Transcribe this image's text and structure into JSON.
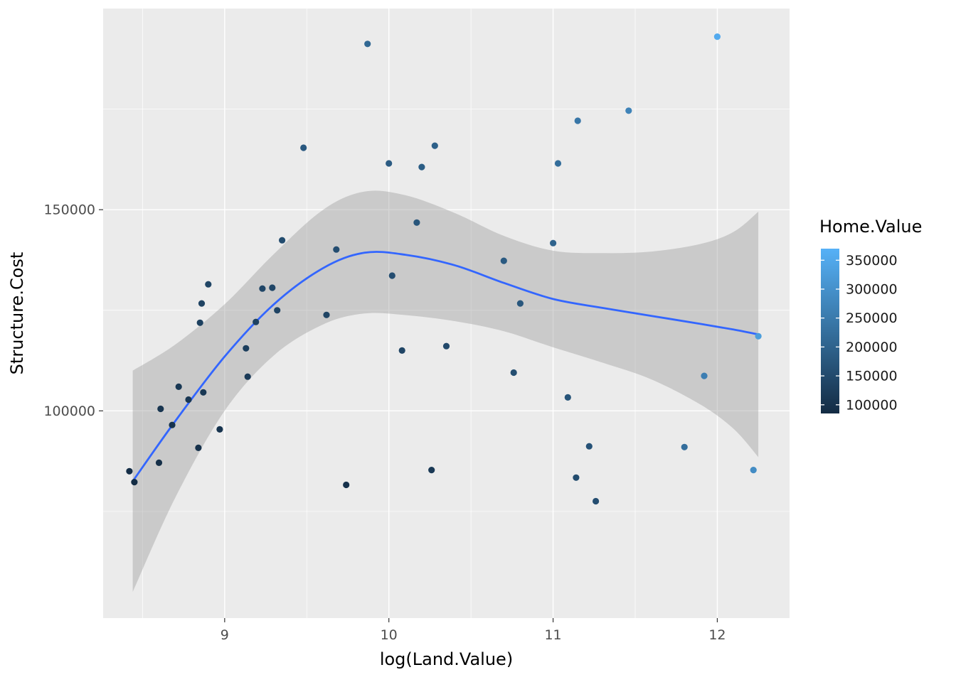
{
  "chart_data": {
    "type": "scatter",
    "xlabel": "log(Land.Value)",
    "ylabel": "Structure.Cost",
    "legend": {
      "title": "Home.Value",
      "ticks": [
        350000,
        300000,
        250000,
        200000,
        150000,
        100000
      ],
      "tick_labels": [
        "350000",
        "300000",
        "250000",
        "200000",
        "150000",
        "100000"
      ]
    },
    "x_axis": {
      "ticks": [
        9,
        10,
        11,
        12
      ],
      "tick_labels": [
        "9",
        "10",
        "11",
        "12"
      ],
      "minor_ticks": [
        8.5,
        9.5,
        10.5,
        11.5
      ],
      "lim": [
        8.26,
        12.44
      ]
    },
    "y_axis": {
      "ticks": [
        150000,
        100000
      ],
      "tick_labels": [
        "150000",
        "100000"
      ],
      "minor_ticks": [
        175000,
        125000,
        75000
      ],
      "lim": [
        48500,
        200000
      ]
    },
    "colors": {
      "panel_bg": "#EBEBEB",
      "grid": "#FFFFFF",
      "smooth_line": "#3366FF",
      "ribbon": "#999999",
      "ribbon_opacity": 0.4,
      "axis_text": "#4D4D4D",
      "title_text": "#000000",
      "gradient_high": "#56B1F7",
      "gradient_mid": "#35709E",
      "gradient_low": "#132B43",
      "color_domain": [
        85000,
        370000
      ]
    },
    "points": {
      "columns": [
        "log_land_value",
        "structure_cost",
        "home_value"
      ],
      "rows": [
        [
          8.42,
          85000,
          89500
        ],
        [
          8.45,
          82300,
          87000
        ],
        [
          8.6,
          87100,
          92500
        ],
        [
          8.61,
          100500,
          106000
        ],
        [
          8.68,
          96500,
          102400
        ],
        [
          8.72,
          106000,
          112100
        ],
        [
          8.78,
          102800,
          109300
        ],
        [
          8.84,
          90800,
          97700
        ],
        [
          8.85,
          121900,
          128900
        ],
        [
          8.86,
          126700,
          133700
        ],
        [
          8.87,
          104600,
          111700
        ],
        [
          8.9,
          131450,
          138800
        ],
        [
          8.97,
          95400,
          103300
        ],
        [
          9.13,
          115550,
          124800
        ],
        [
          9.14,
          108500,
          117800
        ],
        [
          9.19,
          122100,
          131900
        ],
        [
          9.23,
          130400,
          140600
        ],
        [
          9.29,
          130600,
          141400
        ],
        [
          9.32,
          125000,
          136100
        ],
        [
          9.35,
          142400,
          153900
        ],
        [
          9.48,
          165400,
          178500
        ],
        [
          9.62,
          123850,
          138900
        ],
        [
          9.68,
          140100,
          156100
        ],
        [
          9.74,
          81600,
          98600
        ],
        [
          9.87,
          191200,
          210500
        ],
        [
          10.0,
          161500,
          183500
        ],
        [
          10.02,
          133600,
          156100
        ],
        [
          10.08,
          115000,
          138900
        ],
        [
          10.17,
          146800,
          172900
        ],
        [
          10.2,
          160600,
          187600
        ],
        [
          10.26,
          85300,
          113900
        ],
        [
          10.28,
          165900,
          195100
        ],
        [
          10.35,
          116100,
          147400
        ],
        [
          10.7,
          137300,
          181700
        ],
        [
          10.76,
          109500,
          156700
        ],
        [
          10.8,
          126700,
          175700
        ],
        [
          11.0,
          141700,
          201600
        ],
        [
          11.03,
          161500,
          223200
        ],
        [
          11.09,
          103350,
          168900
        ],
        [
          11.14,
          83400,
          152300
        ],
        [
          11.15,
          172100,
          241700
        ],
        [
          11.22,
          91200,
          165900
        ],
        [
          11.26,
          77550,
          155300
        ],
        [
          11.46,
          174600,
          269500
        ],
        [
          11.8,
          91000,
          224300
        ],
        [
          11.92,
          108700,
          258900
        ],
        [
          12.0,
          193000,
          355700
        ],
        [
          12.22,
          85300,
          288000
        ],
        [
          12.25,
          118550,
          327500
        ]
      ]
    },
    "smooth": {
      "x": [
        8.44,
        8.7,
        9.0,
        9.3,
        9.6,
        9.85,
        10.1,
        10.4,
        10.7,
        11.0,
        11.3,
        11.6,
        11.9,
        12.1,
        12.25
      ],
      "y": [
        82500,
        97500,
        113500,
        126500,
        135500,
        139300,
        138800,
        136200,
        131800,
        127800,
        125600,
        123600,
        121600,
        120200,
        119000
      ],
      "upper": [
        110000,
        116500,
        126500,
        139000,
        150000,
        154500,
        153600,
        149200,
        143500,
        139800,
        139200,
        139600,
        141500,
        144500,
        149500
      ],
      "lower": [
        55000,
        78500,
        100000,
        113800,
        121500,
        124200,
        123800,
        122300,
        119800,
        115800,
        112000,
        107800,
        101500,
        95500,
        88500
      ]
    }
  }
}
